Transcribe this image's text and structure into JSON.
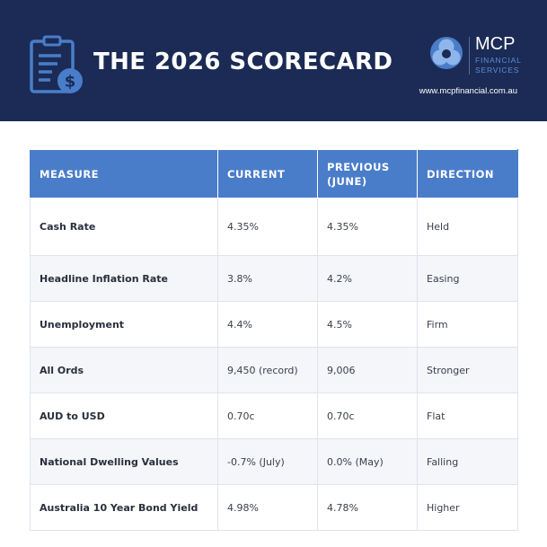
{
  "header": {
    "title": "THE 2026 SCORECARD",
    "doc_icon": "clipboard-dollar-icon",
    "logo": {
      "name": "MCP",
      "sub_line1": "FINANCIAL",
      "sub_line2": "SERVICES",
      "mark_icon": "mcp-logo-icon"
    },
    "website": "www.mcpfinancial.com.au"
  },
  "colors": {
    "banner": "#1b2b55",
    "header_row": "#4a7dc9",
    "alt_row": "#f4f6fa",
    "logo_accent": "#5b8ed6"
  },
  "table": {
    "columns": [
      "MEASURE",
      "CURRENT",
      "PREVIOUS (JUNE)",
      "DIRECTION"
    ],
    "rows": [
      {
        "measure": "Cash Rate",
        "current": "4.35%",
        "previous": "4.35%",
        "direction": "Held"
      },
      {
        "measure": "Headline Inflation Rate",
        "current": "3.8%",
        "previous": "4.2%",
        "direction": "Easing"
      },
      {
        "measure": "Unemployment",
        "current": "4.4%",
        "previous": "4.5%",
        "direction": "Firm"
      },
      {
        "measure": "All Ords",
        "current": "9,450 (record)",
        "previous": "9,006",
        "direction": "Stronger"
      },
      {
        "measure": "AUD to USD",
        "current": "0.70c",
        "previous": "0.70c",
        "direction": "Flat"
      },
      {
        "measure": "National Dwelling Values",
        "current": "-0.7% (July)",
        "previous": "0.0% (May)",
        "direction": "Falling"
      },
      {
        "measure": "Australia 10 Year Bond Yield",
        "current": "4.98%",
        "previous": "4.78%",
        "direction": "Higher"
      }
    ]
  }
}
